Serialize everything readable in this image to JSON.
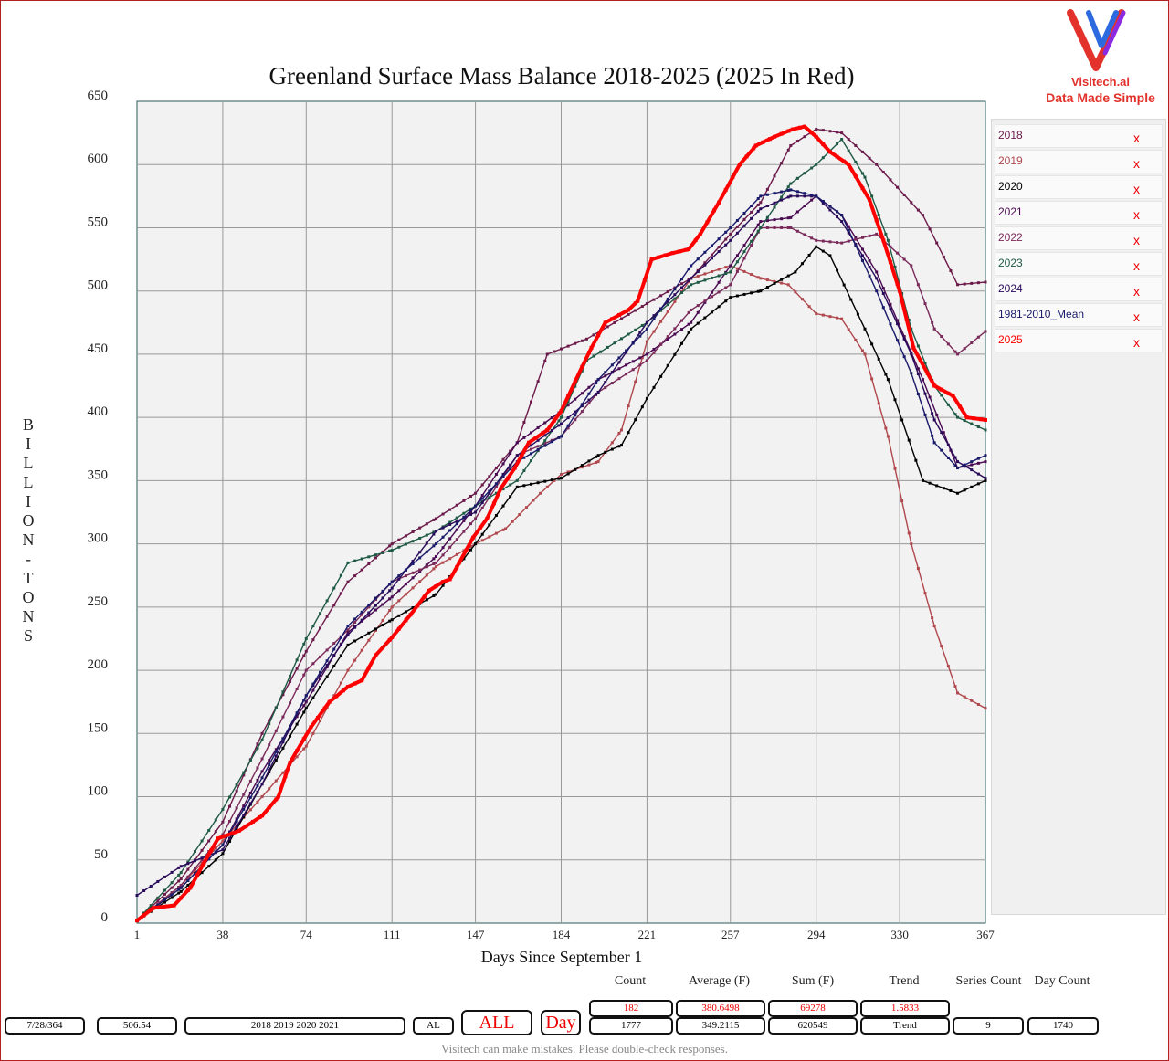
{
  "title": "Greenland Surface Mass Balance 2018-2025 (2025 In Red)",
  "logo": {
    "line1": "Visitech.ai",
    "line2": "Data Made Simple"
  },
  "legend": {
    "items": [
      {
        "name": "2018",
        "color": "#6b1a4a"
      },
      {
        "name": "2019",
        "color": "#b0484e"
      },
      {
        "name": "2020",
        "color": "#000000"
      },
      {
        "name": "2021",
        "color": "#4a0a52"
      },
      {
        "name": "2022",
        "color": "#7a2a5a"
      },
      {
        "name": "2023",
        "color": "#1f5a45"
      },
      {
        "name": "2024",
        "color": "#2a0a5a"
      },
      {
        "name": "1981-2010_Mean",
        "color": "#1a1a6a"
      },
      {
        "name": "2025",
        "color": "#ff0000"
      }
    ],
    "remove_label": "x"
  },
  "stats": {
    "headers": {
      "count": "Count",
      "average": "Average (F)",
      "sum": "Sum (F)",
      "trend": "Trend",
      "series_count": "Series Count",
      "day_count": "Day Count"
    },
    "top": {
      "count": "182",
      "average": "380.6498",
      "sum": "69278",
      "trend": "1.5833"
    },
    "bottom": {
      "count": "1777",
      "average": "349.2115",
      "sum": "620549",
      "trend": "Trend",
      "series_count": "9",
      "day_count": "1740"
    }
  },
  "controls": {
    "date": "7/28/364",
    "value": "506.54",
    "years": "2018 2019 2020 2021",
    "al": "AL",
    "all_button": "ALL",
    "day_button": "Day"
  },
  "disclaimer": "Visitech can make mistakes. Please double-check responses.",
  "chart_data": {
    "type": "line",
    "title": "Greenland Surface Mass Balance 2018-2025 (2025 In Red)",
    "xlabel": "Days Since September 1",
    "ylabel": "BILLION-TONS",
    "xlim": [
      1,
      367
    ],
    "ylim": [
      0,
      650
    ],
    "x_ticks": [
      1,
      38,
      74,
      111,
      147,
      184,
      221,
      257,
      294,
      330,
      367
    ],
    "y_ticks": [
      0,
      50,
      100,
      150,
      200,
      250,
      300,
      350,
      400,
      450,
      500,
      550,
      600,
      650
    ],
    "grid": true,
    "series": [
      {
        "name": "2018",
        "color": "#6b1a4a",
        "points": [
          [
            1,
            2
          ],
          [
            20,
            35
          ],
          [
            38,
            80
          ],
          [
            55,
            150
          ],
          [
            74,
            215
          ],
          [
            92,
            270
          ],
          [
            111,
            300
          ],
          [
            130,
            320
          ],
          [
            147,
            340
          ],
          [
            165,
            380
          ],
          [
            178,
            450
          ],
          [
            195,
            462
          ],
          [
            221,
            490
          ],
          [
            240,
            510
          ],
          [
            257,
            545
          ],
          [
            270,
            570
          ],
          [
            283,
            615
          ],
          [
            294,
            628
          ],
          [
            305,
            625
          ],
          [
            320,
            600
          ],
          [
            340,
            560
          ],
          [
            355,
            505
          ],
          [
            367,
            507
          ]
        ]
      },
      {
        "name": "2019",
        "color": "#b0484e",
        "points": [
          [
            1,
            2
          ],
          [
            20,
            30
          ],
          [
            38,
            65
          ],
          [
            55,
            100
          ],
          [
            74,
            140
          ],
          [
            92,
            200
          ],
          [
            111,
            250
          ],
          [
            130,
            282
          ],
          [
            147,
            300
          ],
          [
            160,
            312
          ],
          [
            175,
            340
          ],
          [
            184,
            355
          ],
          [
            200,
            365
          ],
          [
            210,
            390
          ],
          [
            221,
            460
          ],
          [
            240,
            510
          ],
          [
            257,
            520
          ],
          [
            270,
            510
          ],
          [
            282,
            505
          ],
          [
            294,
            482
          ],
          [
            305,
            478
          ],
          [
            315,
            450
          ],
          [
            325,
            385
          ],
          [
            335,
            300
          ],
          [
            345,
            235
          ],
          [
            355,
            182
          ],
          [
            367,
            170
          ]
        ]
      },
      {
        "name": "2020",
        "color": "#000000",
        "points": [
          [
            1,
            2
          ],
          [
            20,
            25
          ],
          [
            38,
            55
          ],
          [
            55,
            110
          ],
          [
            74,
            170
          ],
          [
            92,
            220
          ],
          [
            111,
            240
          ],
          [
            130,
            260
          ],
          [
            147,
            300
          ],
          [
            165,
            345
          ],
          [
            184,
            352
          ],
          [
            200,
            370
          ],
          [
            210,
            378
          ],
          [
            221,
            415
          ],
          [
            240,
            470
          ],
          [
            257,
            495
          ],
          [
            270,
            500
          ],
          [
            285,
            515
          ],
          [
            294,
            535
          ],
          [
            300,
            528
          ],
          [
            315,
            470
          ],
          [
            325,
            430
          ],
          [
            340,
            350
          ],
          [
            355,
            340
          ],
          [
            367,
            350
          ]
        ]
      },
      {
        "name": "2021",
        "color": "#4a0a52",
        "points": [
          [
            1,
            2
          ],
          [
            20,
            28
          ],
          [
            38,
            62
          ],
          [
            55,
            120
          ],
          [
            74,
            175
          ],
          [
            92,
            230
          ],
          [
            111,
            258
          ],
          [
            130,
            290
          ],
          [
            147,
            330
          ],
          [
            165,
            380
          ],
          [
            184,
            405
          ],
          [
            200,
            430
          ],
          [
            221,
            450
          ],
          [
            240,
            475
          ],
          [
            257,
            520
          ],
          [
            270,
            555
          ],
          [
            283,
            558
          ],
          [
            294,
            575
          ],
          [
            305,
            560
          ],
          [
            320,
            515
          ],
          [
            340,
            430
          ],
          [
            355,
            360
          ],
          [
            367,
            365
          ]
        ]
      },
      {
        "name": "2022",
        "color": "#7a2a5a",
        "points": [
          [
            1,
            2
          ],
          [
            20,
            30
          ],
          [
            38,
            70
          ],
          [
            55,
            130
          ],
          [
            74,
            200
          ],
          [
            92,
            232
          ],
          [
            111,
            270
          ],
          [
            130,
            285
          ],
          [
            147,
            320
          ],
          [
            165,
            370
          ],
          [
            184,
            385
          ],
          [
            200,
            420
          ],
          [
            221,
            445
          ],
          [
            240,
            485
          ],
          [
            257,
            505
          ],
          [
            270,
            550
          ],
          [
            283,
            550
          ],
          [
            294,
            540
          ],
          [
            305,
            538
          ],
          [
            320,
            545
          ],
          [
            335,
            520
          ],
          [
            345,
            470
          ],
          [
            355,
            450
          ],
          [
            367,
            468
          ]
        ]
      },
      {
        "name": "2023",
        "color": "#1f5a45",
        "points": [
          [
            1,
            2
          ],
          [
            20,
            40
          ],
          [
            38,
            90
          ],
          [
            55,
            145
          ],
          [
            74,
            225
          ],
          [
            92,
            285
          ],
          [
            111,
            295
          ],
          [
            130,
            310
          ],
          [
            147,
            330
          ],
          [
            165,
            350
          ],
          [
            184,
            400
          ],
          [
            195,
            445
          ],
          [
            221,
            475
          ],
          [
            240,
            505
          ],
          [
            257,
            515
          ],
          [
            270,
            550
          ],
          [
            283,
            585
          ],
          [
            294,
            600
          ],
          [
            305,
            620
          ],
          [
            315,
            590
          ],
          [
            325,
            540
          ],
          [
            335,
            470
          ],
          [
            345,
            425
          ],
          [
            355,
            400
          ],
          [
            367,
            390
          ]
        ]
      },
      {
        "name": "2024",
        "color": "#2a0a5a",
        "points": [
          [
            1,
            22
          ],
          [
            20,
            45
          ],
          [
            38,
            58
          ],
          [
            55,
            110
          ],
          [
            74,
            180
          ],
          [
            92,
            228
          ],
          [
            111,
            265
          ],
          [
            130,
            310
          ],
          [
            147,
            325
          ],
          [
            165,
            370
          ],
          [
            184,
            395
          ],
          [
            200,
            420
          ],
          [
            221,
            475
          ],
          [
            240,
            510
          ],
          [
            257,
            540
          ],
          [
            270,
            565
          ],
          [
            283,
            575
          ],
          [
            294,
            575
          ],
          [
            305,
            555
          ],
          [
            320,
            510
          ],
          [
            335,
            450
          ],
          [
            345,
            398
          ],
          [
            355,
            365
          ],
          [
            367,
            352
          ]
        ]
      },
      {
        "name": "1981-2010_Mean",
        "color": "#1a1a6a",
        "points": [
          [
            1,
            2
          ],
          [
            20,
            28
          ],
          [
            38,
            62
          ],
          [
            55,
            115
          ],
          [
            74,
            180
          ],
          [
            92,
            235
          ],
          [
            111,
            270
          ],
          [
            130,
            300
          ],
          [
            147,
            330
          ],
          [
            165,
            365
          ],
          [
            184,
            385
          ],
          [
            200,
            430
          ],
          [
            221,
            470
          ],
          [
            240,
            520
          ],
          [
            257,
            550
          ],
          [
            270,
            575
          ],
          [
            283,
            580
          ],
          [
            294,
            575
          ],
          [
            305,
            560
          ],
          [
            320,
            500
          ],
          [
            335,
            435
          ],
          [
            345,
            380
          ],
          [
            355,
            360
          ],
          [
            367,
            370
          ]
        ]
      },
      {
        "name": "2025",
        "color": "#ff0000",
        "width": 4,
        "points": [
          [
            1,
            2
          ],
          [
            8,
            12
          ],
          [
            17,
            14
          ],
          [
            24,
            28
          ],
          [
            30,
            48
          ],
          [
            36,
            67
          ],
          [
            45,
            73
          ],
          [
            55,
            85
          ],
          [
            62,
            100
          ],
          [
            67,
            127
          ],
          [
            76,
            155
          ],
          [
            84,
            175
          ],
          [
            92,
            187
          ],
          [
            98,
            192
          ],
          [
            104,
            212
          ],
          [
            111,
            226
          ],
          [
            119,
            244
          ],
          [
            127,
            263
          ],
          [
            133,
            270
          ],
          [
            136,
            272
          ],
          [
            140,
            285
          ],
          [
            146,
            305
          ],
          [
            152,
            320
          ],
          [
            158,
            344
          ],
          [
            164,
            360
          ],
          [
            170,
            380
          ],
          [
            178,
            390
          ],
          [
            184,
            405
          ],
          [
            193,
            440
          ],
          [
            197,
            455
          ],
          [
            203,
            475
          ],
          [
            213,
            485
          ],
          [
            217,
            492
          ],
          [
            223,
            525
          ],
          [
            232,
            530
          ],
          [
            239,
            533
          ],
          [
            244,
            545
          ],
          [
            252,
            570
          ],
          [
            261,
            600
          ],
          [
            268,
            615
          ],
          [
            276,
            622
          ],
          [
            284,
            628
          ],
          [
            289,
            630
          ],
          [
            294,
            622
          ],
          [
            300,
            610
          ],
          [
            308,
            600
          ],
          [
            317,
            572
          ],
          [
            323,
            540
          ],
          [
            330,
            500
          ],
          [
            336,
            455
          ],
          [
            345,
            425
          ],
          [
            353,
            417
          ],
          [
            359,
            400
          ],
          [
            367,
            398
          ]
        ]
      }
    ]
  }
}
